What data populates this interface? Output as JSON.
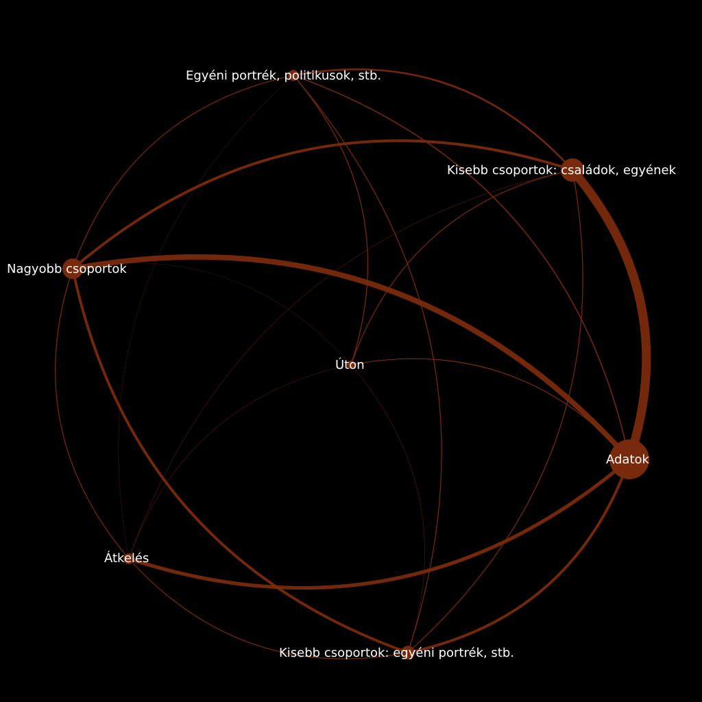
{
  "colors": {
    "background": "#000000",
    "edge": "#7a2a0c",
    "node": "#7a2a0c",
    "label": "#ffffff"
  },
  "nodes": [
    {
      "id": "egyeni",
      "label": "Egyéni portrék, politikusok, stb.",
      "weight": 1
    },
    {
      "id": "kisebb_csal",
      "label": "Kisebb csoportok: családok, egyének",
      "weight": 3
    },
    {
      "id": "nagyobb",
      "label": "Nagyobb csoportok",
      "weight": 2
    },
    {
      "id": "uton",
      "label": "Úton",
      "weight": 1
    },
    {
      "id": "adatok",
      "label": "Adatok",
      "weight": 5
    },
    {
      "id": "atkeles",
      "label": "Átkelés",
      "weight": 1
    },
    {
      "id": "kisebb_egy",
      "label": "Kisebb csoportok: egyéni portrék, stb.",
      "weight": 1
    }
  ],
  "edges": [
    {
      "source": "kisebb_csal",
      "target": "adatok",
      "weight": 10
    },
    {
      "source": "nagyobb",
      "target": "adatok",
      "weight": 6
    },
    {
      "source": "atkeles",
      "target": "adatok",
      "weight": 4
    },
    {
      "source": "nagyobb",
      "target": "kisebb_csal",
      "weight": 3
    },
    {
      "source": "nagyobb",
      "target": "kisebb_egy",
      "weight": 3
    },
    {
      "source": "adatok",
      "target": "kisebb_egy",
      "weight": 3
    },
    {
      "source": "egyeni",
      "target": "kisebb_csal",
      "weight": 2
    },
    {
      "source": "egyeni",
      "target": "adatok",
      "weight": 1.2
    },
    {
      "source": "egyeni",
      "target": "nagyobb",
      "weight": 1
    },
    {
      "source": "egyeni",
      "target": "uton",
      "weight": 1
    },
    {
      "source": "egyeni",
      "target": "kisebb_egy",
      "weight": 1
    },
    {
      "source": "egyeni",
      "target": "atkeles",
      "weight": 0.4
    },
    {
      "source": "kisebb_csal",
      "target": "uton",
      "weight": 1
    },
    {
      "source": "kisebb_csal",
      "target": "kisebb_egy",
      "weight": 1
    },
    {
      "source": "kisebb_csal",
      "target": "nagyobb",
      "weight": 0.8
    },
    {
      "source": "kisebb_csal",
      "target": "atkeles",
      "weight": 0.6
    },
    {
      "source": "nagyobb",
      "target": "atkeles",
      "weight": 1
    },
    {
      "source": "nagyobb",
      "target": "uton",
      "weight": 0.4
    },
    {
      "source": "uton",
      "target": "adatok",
      "weight": 1
    },
    {
      "source": "uton",
      "target": "atkeles",
      "weight": 0.6
    },
    {
      "source": "uton",
      "target": "kisebb_egy",
      "weight": 0.6
    },
    {
      "source": "atkeles",
      "target": "kisebb_egy",
      "weight": 1
    },
    {
      "source": "egyeni",
      "target": "uton",
      "weight": 0.5
    }
  ]
}
